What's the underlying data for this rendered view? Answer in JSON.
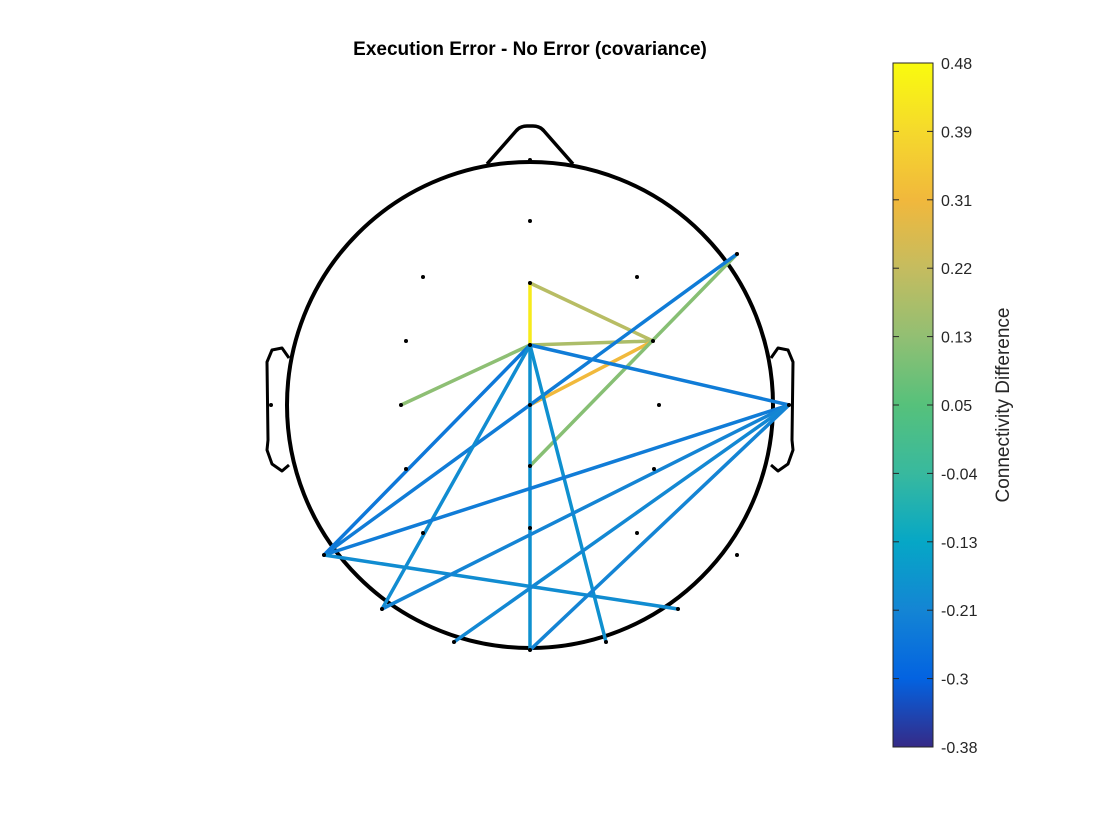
{
  "figure": {
    "title": "Execution Error - No Error (covariance)"
  },
  "colorbar": {
    "label": "Connectivity Difference",
    "ticks": [
      "0.48",
      "0.39",
      "0.31",
      "0.22",
      "0.13",
      "0.05",
      "-0.04",
      "-0.13",
      "-0.21",
      "-0.3",
      "-0.38"
    ],
    "range": [
      -0.38,
      0.48
    ],
    "colormap": "parula"
  },
  "chart_data": {
    "type": "connectivity-head-plot",
    "title": "Execution Error - No Error (covariance)",
    "colorbar_label": "Connectivity Difference",
    "color_range": [
      -0.38,
      0.48
    ],
    "connections": [
      {
        "from": "frontal-midline",
        "to": "central-midline-upper",
        "value": 0.44
      },
      {
        "from": "frontal-midline",
        "to": "right-frontocentral",
        "value": 0.2
      },
      {
        "from": "central-midline-upper",
        "to": "right-frontocentral",
        "value": 0.18
      },
      {
        "from": "central-midline-upper",
        "to": "left-central",
        "value": 0.13
      },
      {
        "from": "central-midline-lower",
        "to": "right-frontocentral",
        "value": 0.31
      },
      {
        "from": "centroparietal-midline",
        "to": "right-frontal-edge",
        "value": 0.12
      },
      {
        "from": "left-temporal-posterior",
        "to": "right-frontal-edge",
        "value": -0.23
      },
      {
        "from": "central-midline-upper",
        "to": "right-temporal",
        "value": -0.23
      },
      {
        "from": "central-midline-upper",
        "to": "left-temporal-posterior",
        "value": -0.24
      },
      {
        "from": "central-midline-upper",
        "to": "left-occipitotemporal",
        "value": -0.19
      },
      {
        "from": "central-midline-upper",
        "to": "right-occipital",
        "value": -0.18
      },
      {
        "from": "central-midline-upper",
        "to": "occipital-midline",
        "value": -0.18
      },
      {
        "from": "left-temporal-posterior",
        "to": "right-temporal",
        "value": -0.23
      },
      {
        "from": "left-temporal-posterior",
        "to": "right-occipitotemporal",
        "value": -0.19
      },
      {
        "from": "right-temporal",
        "to": "left-occipitotemporal",
        "value": -0.21
      },
      {
        "from": "right-temporal",
        "to": "left-occipital",
        "value": -0.2
      },
      {
        "from": "right-temporal",
        "to": "occipital-midline",
        "value": -0.21
      }
    ]
  }
}
